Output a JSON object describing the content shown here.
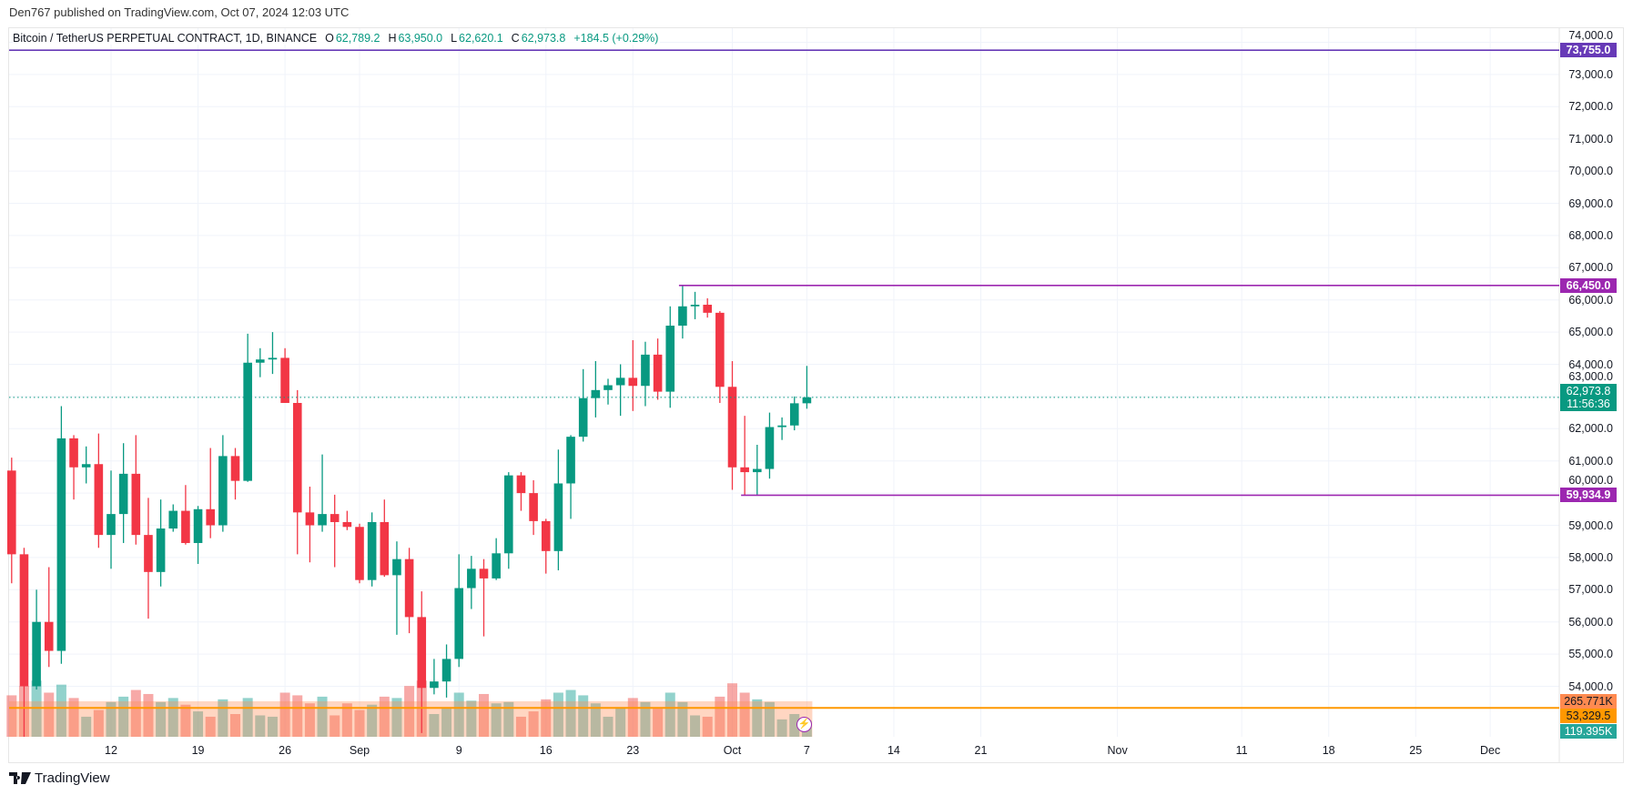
{
  "header": {
    "publish_text": "Den767 published on TradingView.com, Oct 07, 2024 12:03 UTC"
  },
  "legend": {
    "symbol": "Bitcoin / TetherUS PERPETUAL CONTRACT, 1D, BINANCE",
    "o_label": "O",
    "o": "62,789.2",
    "h_label": "H",
    "h": "63,950.0",
    "l_label": "L",
    "l": "62,620.1",
    "c_label": "C",
    "c": "62,973.8",
    "change": "+184.5 (+0.29%)"
  },
  "levels": [
    {
      "label": "73,755.0",
      "price": 73755.0,
      "color": "#673ab7",
      "start": null
    },
    {
      "label": "66,450.0",
      "price": 66450.0,
      "color": "#9c27b0",
      "start": "2024-09-27"
    },
    {
      "label": "59,934.9",
      "price": 59934.9,
      "color": "#9c27b0",
      "start": "2024-10-02"
    },
    {
      "label": "53,329.5",
      "price": 53329.5,
      "color": "#ff9800",
      "start": null
    }
  ],
  "current_price": {
    "label": "62,973.8",
    "countdown": "11:56:36",
    "price": 62973.8,
    "color": "#089981"
  },
  "volume_labels": {
    "ma": "265.771K",
    "ma_value_k": 265.771,
    "ma_color": "#ff8a50",
    "current": "119.395K",
    "current_color": "#26a69a"
  },
  "logo": {
    "text": "TradingView"
  },
  "colors": {
    "up": "#089981",
    "down": "#f23645"
  },
  "chart_data": {
    "type": "candlestick",
    "title": "Bitcoin / TetherUS PERPETUAL CONTRACT, 1D, BINANCE",
    "ylim": [
      53000,
      74500
    ],
    "y_ticks": [
      "74,000.0",
      "73,000.0",
      "72,000.0",
      "71,000.0",
      "70,000.0",
      "69,000.0",
      "68,000.0",
      "67,000.0",
      "66,000.0",
      "65,000.0",
      "64,000.0",
      "63,000.0",
      "62,000.0",
      "61,000.0",
      "60,000.0",
      "59,000.0",
      "58,000.0",
      "57,000.0",
      "56,000.0",
      "55,000.0",
      "54,000.0"
    ],
    "y_tick_values": [
      74000,
      73000,
      72000,
      71000,
      70000,
      69000,
      68000,
      67000,
      66000,
      65000,
      64000,
      63000,
      62000,
      61000,
      60000,
      59000,
      58000,
      57000,
      56000,
      55000,
      54000
    ],
    "x_ticks": [
      {
        "label": "12",
        "date": "2024-08-12"
      },
      {
        "label": "19",
        "date": "2024-08-19"
      },
      {
        "label": "26",
        "date": "2024-08-26"
      },
      {
        "label": "Sep",
        "date": "2024-09-01"
      },
      {
        "label": "9",
        "date": "2024-09-09"
      },
      {
        "label": "16",
        "date": "2024-09-16"
      },
      {
        "label": "23",
        "date": "2024-09-23"
      },
      {
        "label": "Oct",
        "date": "2024-10-01"
      },
      {
        "label": "7",
        "date": "2024-10-07"
      },
      {
        "label": "14",
        "date": "2024-10-14"
      },
      {
        "label": "21",
        "date": "2024-10-21"
      },
      {
        "label": "Nov",
        "date": "2024-11-01"
      },
      {
        "label": "11",
        "date": "2024-11-11"
      },
      {
        "label": "18",
        "date": "2024-11-18"
      },
      {
        "label": "25",
        "date": "2024-11-25"
      },
      {
        "label": "Dec",
        "date": "2024-12-01"
      }
    ],
    "start_date": "2024-08-04",
    "ohlc": [
      [
        60700,
        61100,
        57200,
        58100
      ],
      [
        58100,
        58300,
        49000,
        54000
      ],
      [
        54000,
        57000,
        53900,
        56000
      ],
      [
        56000,
        57700,
        54600,
        55100
      ],
      [
        55100,
        62700,
        54700,
        61700
      ],
      [
        61700,
        61800,
        59800,
        60800
      ],
      [
        60800,
        61450,
        60300,
        60900
      ],
      [
        60900,
        61850,
        58300,
        58700
      ],
      [
        58700,
        60700,
        57650,
        59350
      ],
      [
        59350,
        61550,
        58450,
        60600
      ],
      [
        60600,
        61800,
        58400,
        58700
      ],
      [
        58700,
        59850,
        56100,
        57550
      ],
      [
        57550,
        59800,
        57100,
        58900
      ],
      [
        58900,
        59650,
        58800,
        59450
      ],
      [
        59450,
        60250,
        58400,
        58450
      ],
      [
        58450,
        59600,
        57800,
        59500
      ],
      [
        59500,
        61400,
        58600,
        59000
      ],
      [
        59000,
        61800,
        58800,
        61150
      ],
      [
        61150,
        61400,
        59800,
        60380
      ],
      [
        60380,
        64950,
        60350,
        64050
      ],
      [
        64050,
        64500,
        63600,
        64150
      ],
      [
        64150,
        65000,
        63700,
        64200
      ],
      [
        64200,
        64500,
        62800,
        62800
      ],
      [
        62800,
        63200,
        58100,
        59400
      ],
      [
        59400,
        60200,
        57850,
        59000
      ],
      [
        59000,
        61200,
        58800,
        59350
      ],
      [
        59350,
        59950,
        57700,
        59100
      ],
      [
        59100,
        59450,
        58850,
        58950
      ],
      [
        58950,
        59050,
        57200,
        57300
      ],
      [
        57300,
        59400,
        57100,
        59100
      ],
      [
        59100,
        59800,
        57400,
        57450
      ],
      [
        57450,
        58500,
        55600,
        57950
      ],
      [
        57950,
        58300,
        55650,
        56150
      ],
      [
        56150,
        56950,
        52550,
        53950
      ],
      [
        53950,
        54850,
        53750,
        54150
      ],
      [
        54150,
        55300,
        53650,
        54850
      ],
      [
        54850,
        58100,
        54600,
        57050
      ],
      [
        57050,
        58050,
        56400,
        57650
      ],
      [
        57650,
        57950,
        55550,
        57350
      ],
      [
        57350,
        58600,
        57300,
        58130
      ],
      [
        58130,
        60650,
        57650,
        60550
      ],
      [
        60550,
        60650,
        59450,
        60000
      ],
      [
        60000,
        60400,
        58700,
        59130
      ],
      [
        59130,
        59200,
        57500,
        58200
      ],
      [
        58200,
        61350,
        57600,
        60300
      ],
      [
        60300,
        61800,
        59200,
        61750
      ],
      [
        61750,
        63850,
        61600,
        62950
      ],
      [
        62950,
        64100,
        62350,
        63200
      ],
      [
        63200,
        63550,
        62750,
        63350
      ],
      [
        63350,
        64000,
        62400,
        63580
      ],
      [
        63580,
        64750,
        62550,
        63330
      ],
      [
        63330,
        64700,
        62700,
        64300
      ],
      [
        64300,
        64800,
        62900,
        63150
      ],
      [
        63150,
        65800,
        62650,
        65200
      ],
      [
        65200,
        66450,
        64800,
        65800
      ],
      [
        65800,
        66250,
        65400,
        65850
      ],
      [
        65850,
        66050,
        65450,
        65600
      ],
      [
        65600,
        65650,
        62800,
        63300
      ],
      [
        63300,
        64100,
        60100,
        60800
      ],
      [
        60800,
        62400,
        59934.9,
        60650
      ],
      [
        60650,
        61500,
        59950,
        60750
      ],
      [
        60750,
        62500,
        60450,
        62050
      ],
      [
        62050,
        62350,
        61650,
        62100
      ],
      [
        62100,
        63000,
        61950,
        62789.2
      ],
      [
        62789.2,
        63950,
        62620.1,
        62973.8
      ]
    ],
    "volume_k": [
      310,
      380,
      420,
      330,
      390,
      290,
      150,
      200,
      260,
      300,
      350,
      320,
      260,
      290,
      240,
      190,
      150,
      280,
      170,
      290,
      160,
      150,
      330,
      310,
      250,
      300,
      160,
      250,
      200,
      240,
      300,
      290,
      380,
      420,
      170,
      210,
      330,
      270,
      320,
      250,
      260,
      150,
      190,
      280,
      330,
      350,
      310,
      250,
      150,
      220,
      290,
      260,
      210,
      330,
      260,
      160,
      150,
      300,
      400,
      330,
      280,
      260,
      130,
      170,
      119.395
    ],
    "grid": true
  }
}
